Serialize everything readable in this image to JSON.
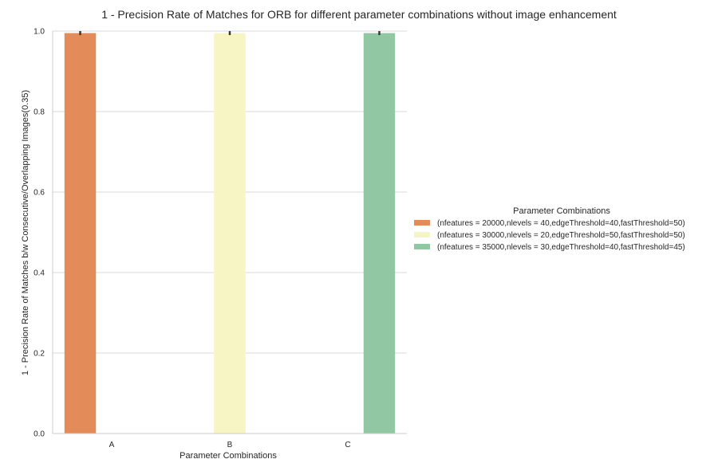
{
  "chart_data": {
    "type": "bar",
    "title": "1 - Precision Rate of Matches for ORB for different parameter combinations without image enhancement",
    "xlabel": "Parameter Combinations",
    "ylabel": "1 - Precision Rate of Matches b/w Consecutive/Overlapping Images(0.35)",
    "categories": [
      "A",
      "B",
      "C"
    ],
    "ylim": [
      0,
      1.0
    ],
    "yticks": [
      0.0,
      0.2,
      0.4,
      0.6,
      0.8,
      1.0
    ],
    "ytick_labels": [
      "0.0",
      "0.2",
      "0.4",
      "0.6",
      "0.8",
      "1.0"
    ],
    "grid": "horizontal",
    "legend_title": "Parameter Combinations",
    "legend_position": "center-right",
    "series": [
      {
        "name": "(nfeatures = 20000,nlevels = 40,edgeThreshold=40,fastThreshold=50)",
        "color": "#e38c5a",
        "values": [
          0.995,
          null,
          null
        ],
        "error_high": [
          1.0,
          null,
          null
        ],
        "error_low": [
          0.99,
          null,
          null
        ]
      },
      {
        "name": "(nfeatures = 30000,nlevels = 20,edgeThreshold=50,fastThreshold=50)",
        "color": "#f8f5c5",
        "values": [
          null,
          0.995,
          null
        ],
        "error_high": [
          null,
          1.0,
          null
        ],
        "error_low": [
          null,
          0.99,
          null
        ]
      },
      {
        "name": "(nfeatures = 35000,nlevels = 30,edgeThreshold=40,fastThreshold=45)",
        "color": "#92c7a4",
        "values": [
          null,
          null,
          0.995
        ],
        "error_high": [
          null,
          null,
          1.0
        ],
        "error_low": [
          null,
          null,
          0.99
        ]
      }
    ]
  }
}
